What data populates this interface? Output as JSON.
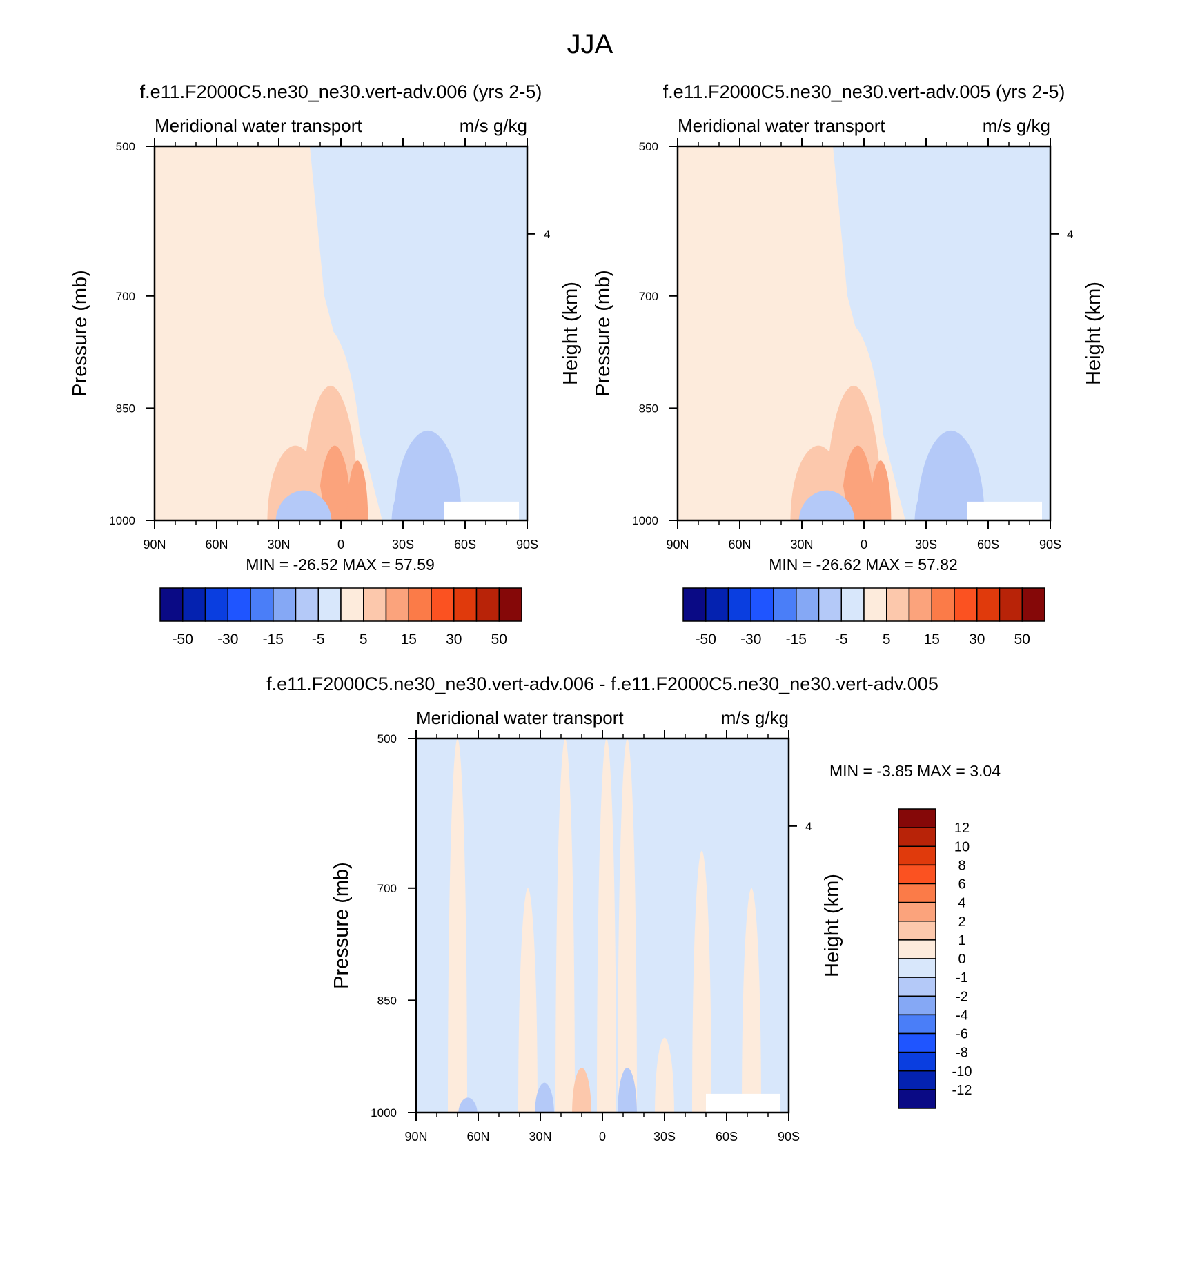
{
  "page_title": "JJA",
  "chart_data": [
    {
      "type": "heatmap",
      "id": "p1",
      "title": "f.e11.F2000C5.ne30_ne30.vert-adv.006 (yrs 2-5)",
      "left_label": "Meridional water transport",
      "right_label": "m/s g/kg",
      "xlabel": "",
      "ylabel": "Pressure (mb)",
      "y2label": "Height (km)",
      "x_ticks": [
        "90N",
        "60N",
        "30N",
        "0",
        "30S",
        "60S",
        "90S"
      ],
      "x_tick_values": [
        90,
        60,
        30,
        0,
        -30,
        -60,
        -90
      ],
      "y_ticks": [
        "500",
        "700",
        "850",
        "1000"
      ],
      "y_tick_values": [
        500,
        700,
        850,
        1000
      ],
      "y2_ticks": [
        "4"
      ],
      "y2_tick_pressure": [
        617
      ],
      "xlim": [
        90,
        -90
      ],
      "ylim": [
        500,
        1000
      ],
      "stats": "MIN = -26.52  MAX =  57.59",
      "min": -26.52,
      "max": 57.59,
      "features": [
        {
          "lat": 8,
          "p_top": 740,
          "level": 3
        },
        {
          "lat": 5,
          "p_top": 780,
          "level": 5
        },
        {
          "lat": 5,
          "p_top": 820,
          "level": 7
        },
        {
          "lat": 5,
          "p_top": 860,
          "level": 9
        },
        {
          "lat": 3,
          "p_top": 900,
          "level": 11
        },
        {
          "lat": -8,
          "p_top": 920,
          "level": 13
        },
        {
          "lat": 40,
          "p_top": 770,
          "level": 3
        },
        {
          "lat": 30,
          "p_top": 860,
          "level": 5
        },
        {
          "lat": 22,
          "p_top": 900,
          "level": 7
        },
        {
          "lat": 55,
          "p_top": 880,
          "level": 3
        },
        {
          "lat": 18,
          "p_top": 960,
          "level": -7
        },
        {
          "lat": -40,
          "p_top": 750,
          "level": -3
        },
        {
          "lat": -42,
          "p_top": 880,
          "level": -5
        },
        {
          "lat": -38,
          "p_top": 940,
          "level": -7
        }
      ]
    },
    {
      "type": "heatmap",
      "id": "p2",
      "title": "f.e11.F2000C5.ne30_ne30.vert-adv.005 (yrs 2-5)",
      "left_label": "Meridional water transport",
      "right_label": "m/s g/kg",
      "xlabel": "",
      "ylabel": "Pressure (mb)",
      "y2label": "Height (km)",
      "x_ticks": [
        "90N",
        "60N",
        "30N",
        "0",
        "30S",
        "60S",
        "90S"
      ],
      "x_tick_values": [
        90,
        60,
        30,
        0,
        -30,
        -60,
        -90
      ],
      "y_ticks": [
        "500",
        "700",
        "850",
        "1000"
      ],
      "y_tick_values": [
        500,
        700,
        850,
        1000
      ],
      "y2_ticks": [
        "4"
      ],
      "y2_tick_pressure": [
        617
      ],
      "xlim": [
        90,
        -90
      ],
      "ylim": [
        500,
        1000
      ],
      "stats": "MIN = -26.62  MAX =  57.82",
      "min": -26.62,
      "max": 57.82,
      "features": [
        {
          "lat": 8,
          "p_top": 735,
          "level": 3
        },
        {
          "lat": 5,
          "p_top": 780,
          "level": 5
        },
        {
          "lat": 5,
          "p_top": 820,
          "level": 7
        },
        {
          "lat": 5,
          "p_top": 860,
          "level": 9
        },
        {
          "lat": 3,
          "p_top": 900,
          "level": 11
        },
        {
          "lat": -8,
          "p_top": 920,
          "level": 13
        },
        {
          "lat": 40,
          "p_top": 770,
          "level": 3
        },
        {
          "lat": 30,
          "p_top": 860,
          "level": 5
        },
        {
          "lat": 22,
          "p_top": 900,
          "level": 7
        },
        {
          "lat": 55,
          "p_top": 880,
          "level": 3
        },
        {
          "lat": 18,
          "p_top": 960,
          "level": -7
        },
        {
          "lat": -40,
          "p_top": 760,
          "level": -3
        },
        {
          "lat": -42,
          "p_top": 880,
          "level": -5
        },
        {
          "lat": -38,
          "p_top": 940,
          "level": -7
        }
      ]
    },
    {
      "type": "heatmap",
      "id": "p3",
      "title": "f.e11.F2000C5.ne30_ne30.vert-adv.006 - f.e11.F2000C5.ne30_ne30.vert-adv.005",
      "left_label": "Meridional water transport",
      "right_label": "m/s g/kg",
      "xlabel": "",
      "ylabel": "Pressure (mb)",
      "y2label": "Height (km)",
      "x_ticks": [
        "90N",
        "60N",
        "30N",
        "0",
        "30S",
        "60S",
        "90S"
      ],
      "x_tick_values": [
        90,
        60,
        30,
        0,
        -30,
        -60,
        -90
      ],
      "y_ticks": [
        "500",
        "700",
        "850",
        "1000"
      ],
      "y_tick_values": [
        500,
        700,
        850,
        1000
      ],
      "y2_ticks": [
        "4"
      ],
      "y2_tick_pressure": [
        617
      ],
      "xlim": [
        90,
        -90
      ],
      "ylim": [
        500,
        1000
      ],
      "stats": "MIN = -3.85  MAX =   3.04",
      "min": -3.85,
      "max": 3.04,
      "features": [
        {
          "lat": 18,
          "p_top": 500,
          "level": 0.5
        },
        {
          "lat": -2,
          "p_top": 500,
          "level": 0.5
        },
        {
          "lat": -12,
          "p_top": 500,
          "level": 0.5
        },
        {
          "lat": 70,
          "p_top": 500,
          "level": 0.5
        },
        {
          "lat": 36,
          "p_top": 700,
          "level": 0.5
        },
        {
          "lat": -48,
          "p_top": 650,
          "level": 0.5
        },
        {
          "lat": -72,
          "p_top": 700,
          "level": 0.5
        },
        {
          "lat": -30,
          "p_top": 900,
          "level": 0.5
        },
        {
          "lat": 10,
          "p_top": 940,
          "level": 1.5
        },
        {
          "lat": 28,
          "p_top": 960,
          "level": -1.5
        },
        {
          "lat": -12,
          "p_top": 940,
          "level": -1.5
        },
        {
          "lat": 65,
          "p_top": 980,
          "level": -1.5
        }
      ]
    }
  ],
  "colorbars": [
    {
      "id": "cb1",
      "orientation": "horizontal",
      "colors": [
        "#0a0a85",
        "#0422b0",
        "#0a3ee0",
        "#1f55ff",
        "#4a7ef8",
        "#85a8f5",
        "#b4c9f8",
        "#d8e7fb",
        "#fdebdc",
        "#fcc8ac",
        "#fba37c",
        "#fb7b48",
        "#fb5221",
        "#e03a0c",
        "#b82308",
        "#850808"
      ],
      "labels": [
        "-50",
        "-30",
        "-15",
        "-5",
        "5",
        "15",
        "30",
        "50"
      ]
    },
    {
      "id": "cb2",
      "orientation": "horizontal",
      "colors": [
        "#0a0a85",
        "#0422b0",
        "#0a3ee0",
        "#1f55ff",
        "#4a7ef8",
        "#85a8f5",
        "#b4c9f8",
        "#d8e7fb",
        "#fdebdc",
        "#fcc8ac",
        "#fba37c",
        "#fb7b48",
        "#fb5221",
        "#e03a0c",
        "#b82308",
        "#850808"
      ],
      "labels": [
        "-50",
        "-30",
        "-15",
        "-5",
        "5",
        "15",
        "30",
        "50"
      ]
    },
    {
      "id": "cb3",
      "orientation": "vertical",
      "colors": [
        "#850808",
        "#b82308",
        "#e03a0c",
        "#fb5221",
        "#fb7b48",
        "#fba37c",
        "#fcc8ac",
        "#fdebdc",
        "#d8e7fb",
        "#b4c9f8",
        "#85a8f5",
        "#4a7ef8",
        "#1f55ff",
        "#0a3ee0",
        "#0422b0",
        "#0a0a85"
      ],
      "labels": [
        "12",
        "10",
        "8",
        "6",
        "4",
        "2",
        "1",
        "0",
        "-1",
        "-2",
        "-4",
        "-6",
        "-8",
        "-10",
        "-12"
      ]
    }
  ]
}
